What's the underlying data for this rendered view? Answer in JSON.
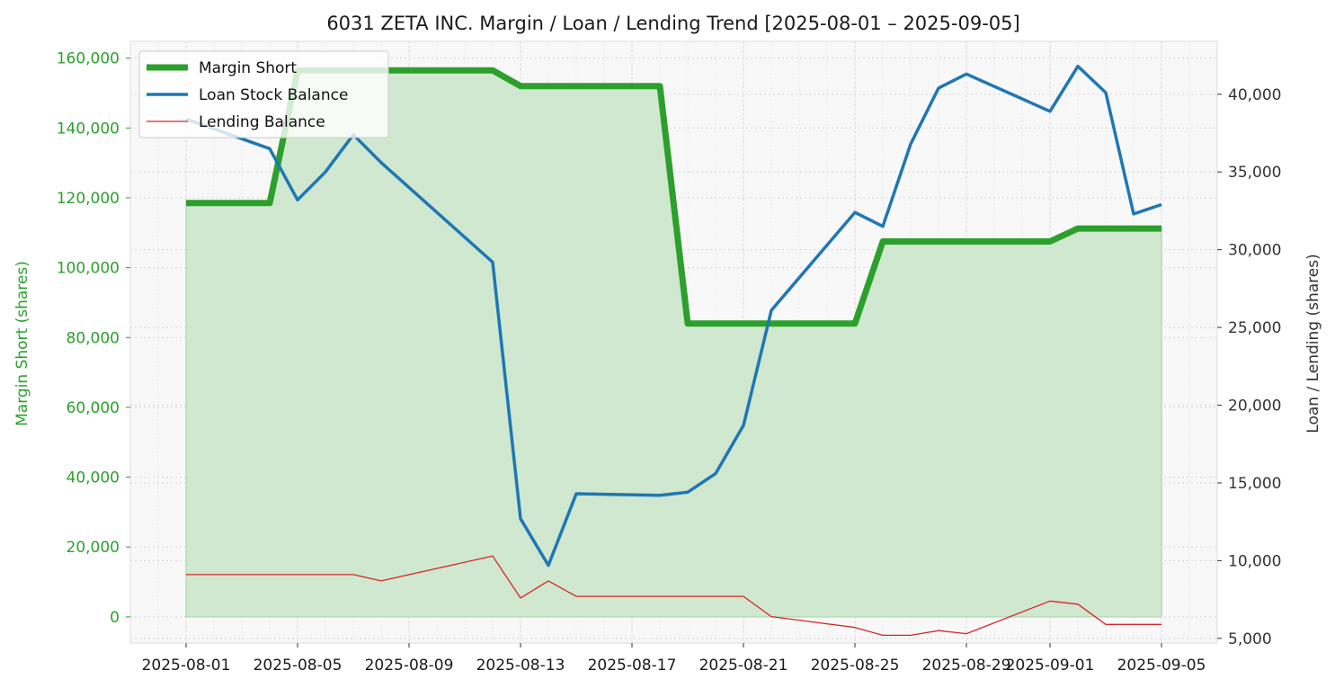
{
  "chart_data": {
    "type": "line",
    "title": "6031 ZETA INC. Margin / Loan / Lending Trend [2025-08-01 – 2025-09-05]",
    "ylabel_left": "Margin Short (shares)",
    "ylabel_right": "Loan / Lending (shares)",
    "x_ticks": [
      "2025-08-01",
      "2025-08-05",
      "2025-08-09",
      "2025-08-13",
      "2025-08-17",
      "2025-08-21",
      "2025-08-25",
      "2025-08-29",
      "2025-09-01",
      "2025-09-05"
    ],
    "y_left_ticks": [
      "0",
      "20,000",
      "40,000",
      "60,000",
      "80,000",
      "100,000",
      "120,000",
      "140,000",
      "160,000"
    ],
    "y_left_tick_values": [
      0,
      20000,
      40000,
      60000,
      80000,
      100000,
      120000,
      140000,
      160000
    ],
    "y_right_ticks": [
      "5,000",
      "10,000",
      "15,000",
      "20,000",
      "25,000",
      "30,000",
      "35,000",
      "40,000"
    ],
    "y_right_tick_values": [
      5000,
      10000,
      15000,
      20000,
      25000,
      30000,
      35000,
      40000
    ],
    "xlim": [
      "2025-07-30",
      "2025-09-07"
    ],
    "ylim_left": [
      -7500,
      164800
    ],
    "ylim_right": [
      4700,
      43400
    ],
    "grid": true,
    "legend_position": "top-left",
    "colors": {
      "margin_short": "#2ca02c",
      "loan_stock": "#1f77b4",
      "lending": "#d62728",
      "fill": "#cfe8cf",
      "background": "#f8f8f8"
    },
    "series": [
      {
        "name": "Margin Short",
        "axis": "left",
        "x": [
          "2025-08-01",
          "2025-08-04",
          "2025-08-05",
          "2025-08-12",
          "2025-08-13",
          "2025-08-18",
          "2025-08-19",
          "2025-08-25",
          "2025-08-26",
          "2025-09-01",
          "2025-09-02",
          "2025-09-05"
        ],
        "y": [
          118500,
          118500,
          156500,
          156500,
          152000,
          152000,
          84000,
          84000,
          107500,
          107500,
          111200,
          111200
        ]
      },
      {
        "name": "Loan Stock Balance",
        "axis": "right",
        "x": [
          "2025-08-01",
          "2025-08-04",
          "2025-08-05",
          "2025-08-06",
          "2025-08-07",
          "2025-08-08",
          "2025-08-12",
          "2025-08-13",
          "2025-08-14",
          "2025-08-15",
          "2025-08-18",
          "2025-08-19",
          "2025-08-20",
          "2025-08-21",
          "2025-08-22",
          "2025-08-25",
          "2025-08-26",
          "2025-08-27",
          "2025-08-28",
          "2025-08-29",
          "2025-09-01",
          "2025-09-02",
          "2025-09-03",
          "2025-09-04",
          "2025-09-05"
        ],
        "y": [
          38400,
          36500,
          33200,
          35000,
          37400,
          35600,
          29200,
          12700,
          9700,
          14300,
          14200,
          14400,
          15600,
          18700,
          26100,
          32400,
          31500,
          36800,
          40400,
          41300,
          38900,
          41800,
          40100,
          32300,
          32900
        ]
      },
      {
        "name": "Lending Balance",
        "axis": "right",
        "x": [
          "2025-08-01",
          "2025-08-07",
          "2025-08-08",
          "2025-08-12",
          "2025-08-13",
          "2025-08-14",
          "2025-08-15",
          "2025-08-21",
          "2025-08-22",
          "2025-08-25",
          "2025-08-26",
          "2025-08-27",
          "2025-08-28",
          "2025-08-29",
          "2025-09-01",
          "2025-09-02",
          "2025-09-03",
          "2025-09-05"
        ],
        "y": [
          9100,
          9100,
          8700,
          10300,
          7600,
          8700,
          7700,
          7700,
          6400,
          5700,
          5200,
          5200,
          5500,
          5300,
          7400,
          7200,
          5900,
          5900
        ]
      }
    ]
  }
}
